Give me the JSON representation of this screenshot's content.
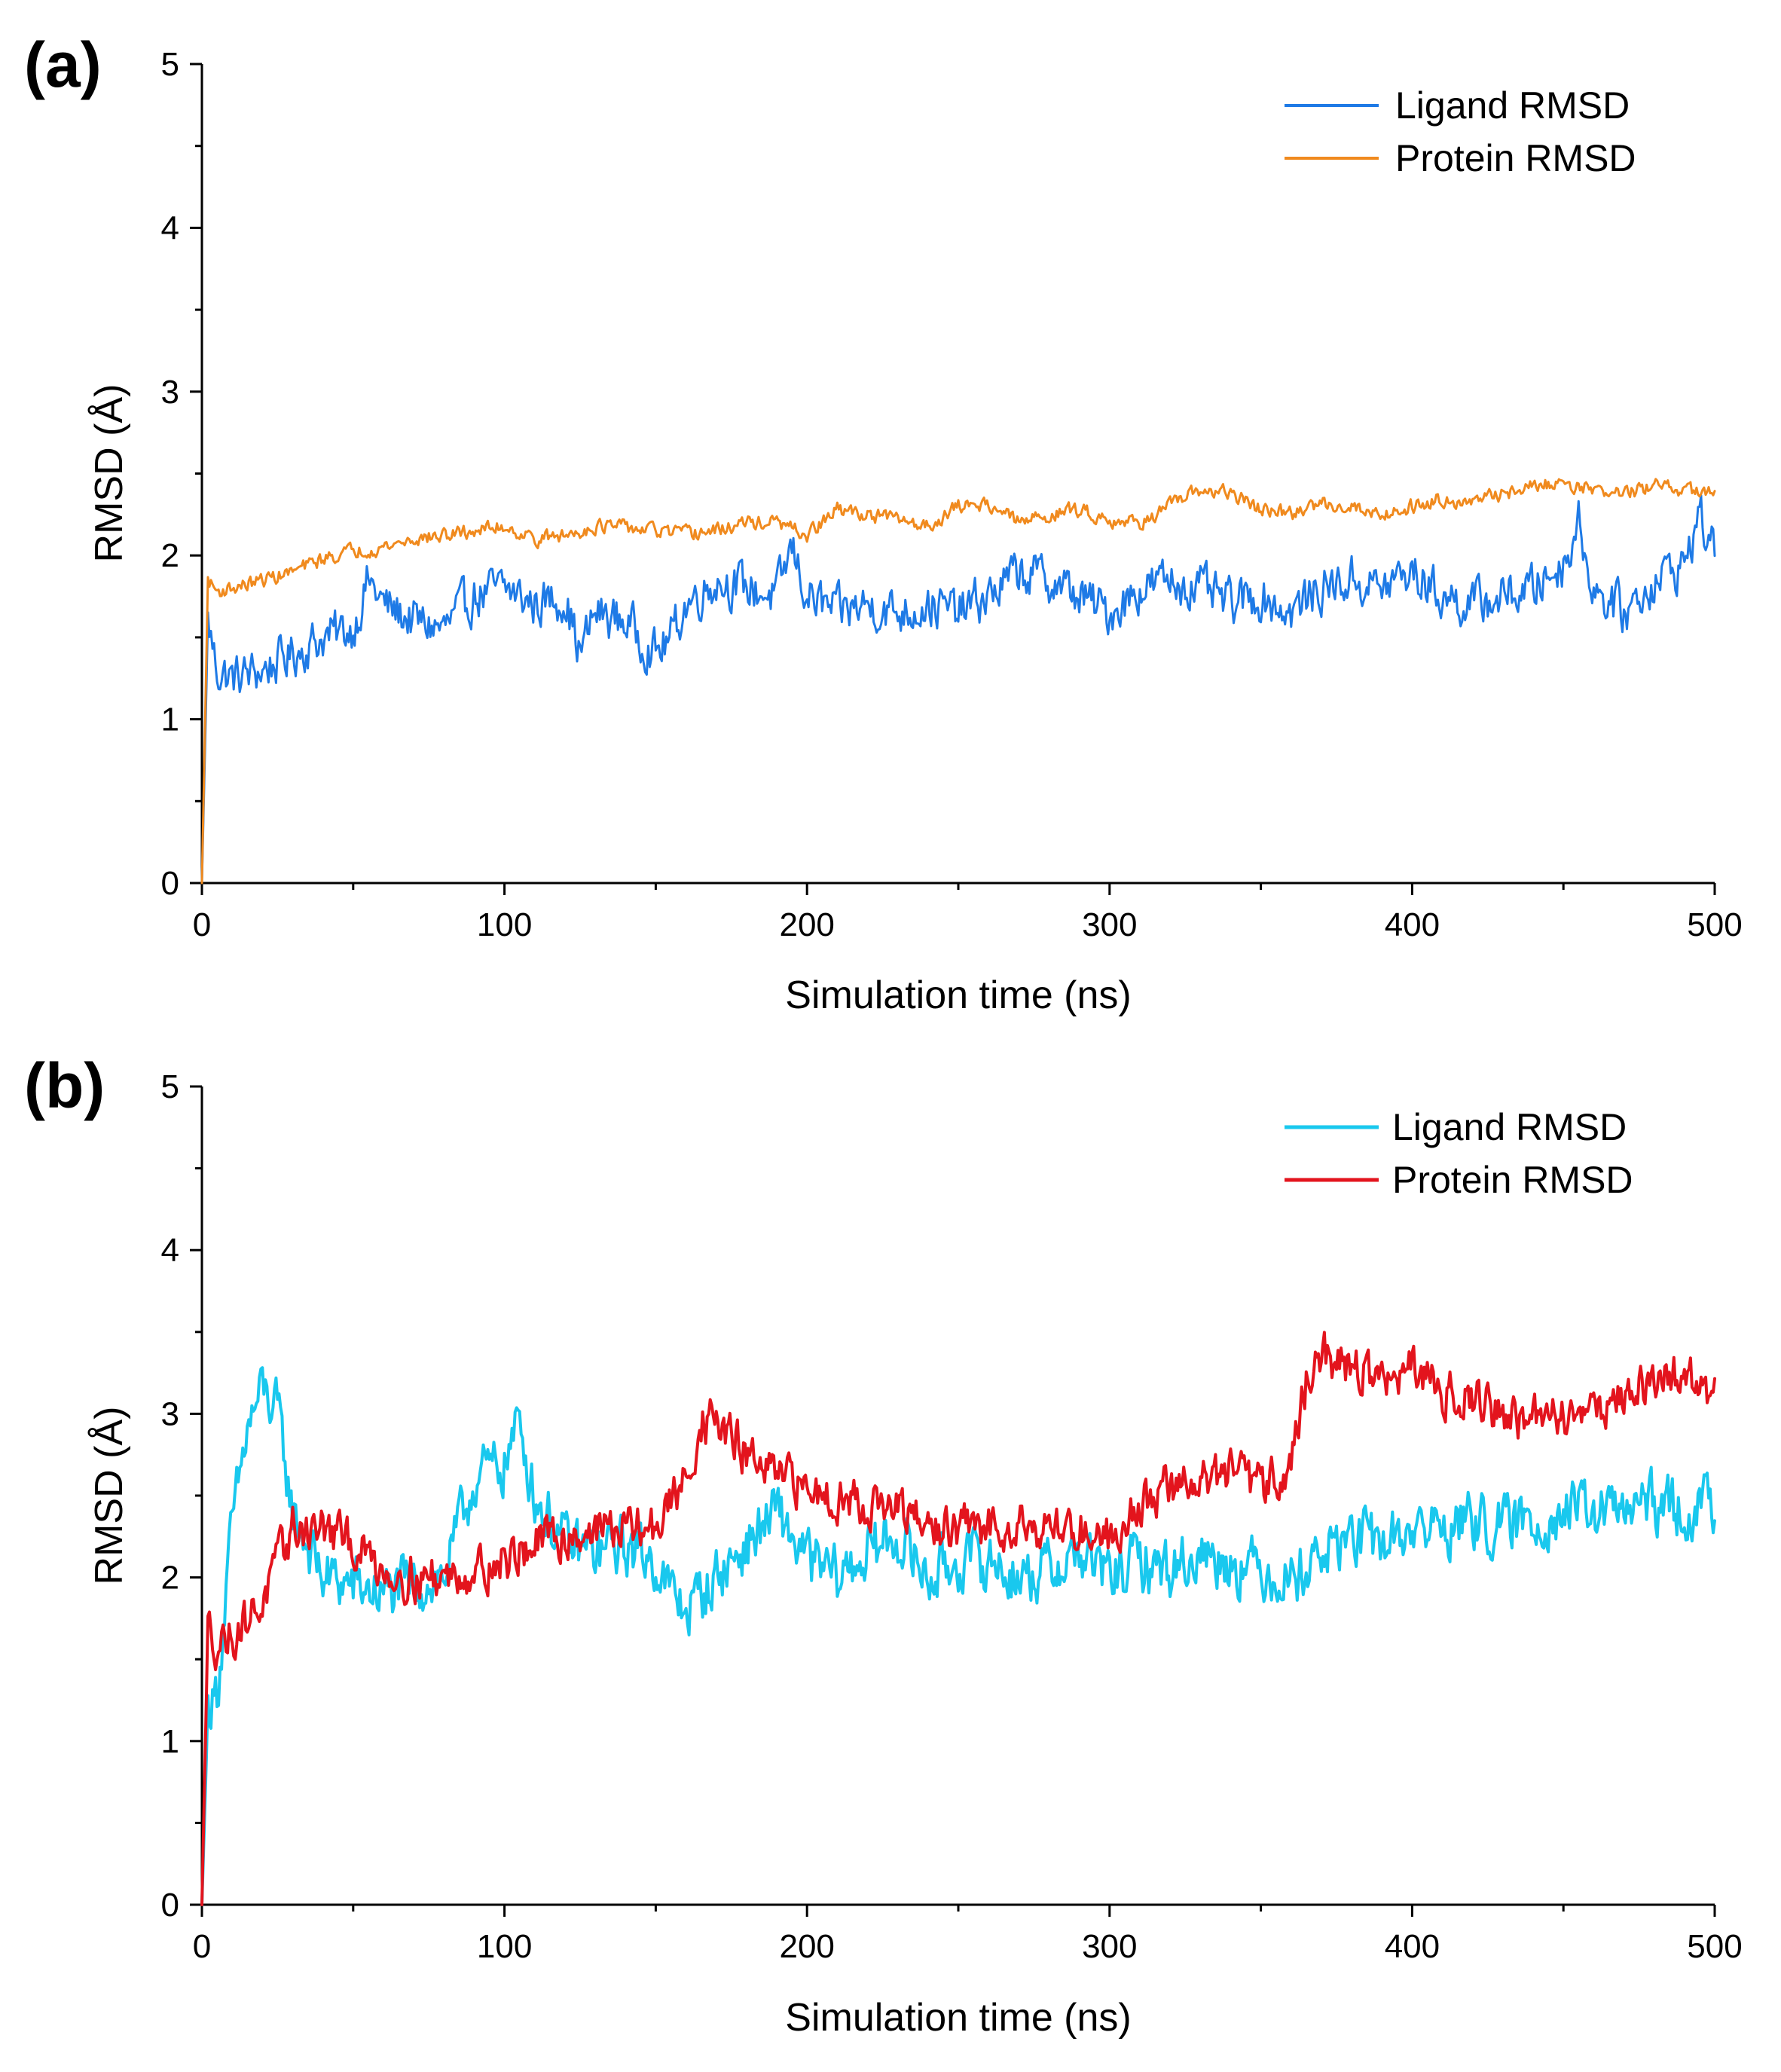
{
  "chart_data": [
    {
      "panel": "(a)",
      "type": "line",
      "title": "",
      "xlabel": "Simulation time (ns)",
      "ylabel": "RMSD (Å)",
      "xlim": [
        0,
        500
      ],
      "ylim": [
        0,
        5
      ],
      "x_ticks": [
        0,
        100,
        200,
        300,
        400,
        500
      ],
      "x_tick_labels": [
        "0",
        "100",
        "200",
        "300",
        "400",
        "500"
      ],
      "y_ticks": [
        0,
        1,
        2,
        3,
        4,
        5
      ],
      "y_tick_labels": [
        "0",
        "1",
        "2",
        "3",
        "4",
        "5"
      ],
      "legend_position": "top-right",
      "series": [
        {
          "name": "Ligand RMSD",
          "color": "#1e7ae6",
          "x": [
            0,
            2,
            5,
            10,
            20,
            30,
            40,
            50,
            55,
            60,
            70,
            80,
            90,
            100,
            110,
            120,
            125,
            130,
            140,
            150,
            155,
            160,
            170,
            180,
            190,
            195,
            200,
            210,
            220,
            230,
            240,
            250,
            260,
            270,
            280,
            290,
            300,
            310,
            320,
            330,
            340,
            350,
            360,
            370,
            380,
            390,
            400,
            410,
            420,
            430,
            440,
            450,
            455,
            460,
            470,
            480,
            490,
            495,
            500
          ],
          "y": [
            0.0,
            1.6,
            1.3,
            1.25,
            1.3,
            1.4,
            1.5,
            1.55,
            1.85,
            1.7,
            1.6,
            1.55,
            1.75,
            1.8,
            1.7,
            1.75,
            1.4,
            1.65,
            1.6,
            1.4,
            1.5,
            1.7,
            1.85,
            1.8,
            1.75,
            2.05,
            1.75,
            1.65,
            1.7,
            1.65,
            1.7,
            1.65,
            1.75,
            1.9,
            1.85,
            1.75,
            1.65,
            1.8,
            1.85,
            1.8,
            1.7,
            1.75,
            1.65,
            1.8,
            1.85,
            1.8,
            1.9,
            1.75,
            1.7,
            1.75,
            1.8,
            1.95,
            2.2,
            1.8,
            1.65,
            1.85,
            1.95,
            2.25,
            2.0
          ]
        },
        {
          "name": "Protein RMSD",
          "color": "#f08a1e",
          "x": [
            0,
            2,
            5,
            10,
            20,
            30,
            40,
            50,
            60,
            70,
            80,
            90,
            100,
            110,
            120,
            130,
            140,
            150,
            160,
            170,
            180,
            190,
            200,
            210,
            220,
            230,
            240,
            250,
            260,
            270,
            280,
            290,
            300,
            310,
            320,
            330,
            340,
            350,
            360,
            370,
            380,
            390,
            400,
            410,
            420,
            430,
            440,
            450,
            460,
            470,
            480,
            490,
            500
          ],
          "y": [
            0.0,
            1.85,
            1.78,
            1.8,
            1.85,
            1.9,
            1.98,
            2.03,
            2.05,
            2.1,
            2.12,
            2.15,
            2.18,
            2.1,
            2.12,
            2.18,
            2.17,
            2.15,
            2.13,
            2.15,
            2.2,
            2.2,
            2.12,
            2.28,
            2.25,
            2.22,
            2.18,
            2.3,
            2.32,
            2.2,
            2.25,
            2.28,
            2.22,
            2.2,
            2.3,
            2.4,
            2.38,
            2.28,
            2.25,
            2.32,
            2.3,
            2.25,
            2.3,
            2.35,
            2.32,
            2.38,
            2.42,
            2.45,
            2.4,
            2.38,
            2.42,
            2.4,
            2.38
          ]
        }
      ]
    },
    {
      "panel": "(b)",
      "type": "line",
      "title": "",
      "xlabel": "Simulation time (ns)",
      "ylabel": "RMSD (Å)",
      "xlim": [
        0,
        500
      ],
      "ylim": [
        0,
        5
      ],
      "x_ticks": [
        0,
        100,
        200,
        300,
        400,
        500
      ],
      "x_tick_labels": [
        "0",
        "100",
        "200",
        "300",
        "400",
        "500"
      ],
      "y_ticks": [
        0,
        1,
        2,
        3,
        4,
        5
      ],
      "y_tick_labels": [
        "0",
        "1",
        "2",
        "3",
        "4",
        "5"
      ],
      "legend_position": "top-right",
      "series": [
        {
          "name": "Ligand RMSD",
          "color": "#19c8ee",
          "x": [
            0,
            2,
            5,
            10,
            15,
            20,
            25,
            30,
            35,
            40,
            50,
            60,
            70,
            80,
            90,
            100,
            105,
            110,
            120,
            130,
            140,
            150,
            155,
            160,
            170,
            180,
            190,
            200,
            210,
            220,
            230,
            240,
            250,
            260,
            270,
            280,
            290,
            300,
            310,
            320,
            330,
            340,
            350,
            360,
            370,
            380,
            390,
            400,
            410,
            420,
            430,
            440,
            450,
            460,
            470,
            480,
            490,
            500
          ],
          "y": [
            0.0,
            1.2,
            1.3,
            2.3,
            2.9,
            3.15,
            3.0,
            2.4,
            2.2,
            2.0,
            1.95,
            1.9,
            1.95,
            2.0,
            2.6,
            2.7,
            2.95,
            2.5,
            2.2,
            2.15,
            2.2,
            2.1,
            1.9,
            1.8,
            2.0,
            2.2,
            2.4,
            2.1,
            2.0,
            2.15,
            2.25,
            2.0,
            2.1,
            2.1,
            2.0,
            2.05,
            2.15,
            2.0,
            2.1,
            2.05,
            2.15,
            2.1,
            2.05,
            2.0,
            2.15,
            2.25,
            2.2,
            2.3,
            2.3,
            2.35,
            2.3,
            2.35,
            2.4,
            2.4,
            2.4,
            2.45,
            2.4,
            2.45
          ]
        },
        {
          "name": "Protein RMSD",
          "color": "#e3141d",
          "x": [
            0,
            2,
            5,
            10,
            20,
            30,
            40,
            50,
            60,
            70,
            80,
            90,
            100,
            110,
            120,
            130,
            140,
            150,
            160,
            165,
            170,
            180,
            190,
            200,
            210,
            220,
            230,
            240,
            250,
            260,
            270,
            280,
            290,
            300,
            310,
            320,
            330,
            340,
            350,
            360,
            365,
            370,
            380,
            390,
            400,
            410,
            420,
            430,
            440,
            450,
            460,
            470,
            480,
            490,
            500
          ],
          "y": [
            0.0,
            1.7,
            1.6,
            1.65,
            1.85,
            2.3,
            2.3,
            2.2,
            2.05,
            2.0,
            2.0,
            2.05,
            2.1,
            2.2,
            2.25,
            2.3,
            2.3,
            2.3,
            2.6,
            2.95,
            2.95,
            2.75,
            2.6,
            2.55,
            2.5,
            2.45,
            2.4,
            2.3,
            2.3,
            2.3,
            2.35,
            2.3,
            2.3,
            2.25,
            2.45,
            2.55,
            2.6,
            2.65,
            2.55,
            2.7,
            3.2,
            3.35,
            3.3,
            3.2,
            3.25,
            3.15,
            3.1,
            3.0,
            2.95,
            3.0,
            3.05,
            3.1,
            3.2,
            3.25,
            3.1
          ]
        }
      ]
    }
  ]
}
